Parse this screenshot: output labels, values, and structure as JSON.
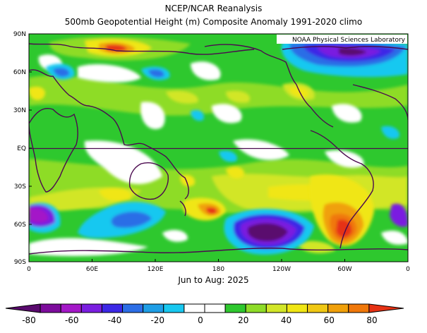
{
  "title": "NCEP/NCAR Reanalysis",
  "subtitle": "500mb Geopotential Height (m) Composite Anomaly 1991-2020 climo",
  "credit": "NOAA Physical Sciences Laboratory",
  "period": "Jun to Aug: 2025",
  "lat_ticks": [
    "90N",
    "60N",
    "30N",
    "EQ",
    "30S",
    "60S",
    "90S"
  ],
  "lon_ticks": [
    "0",
    "60E",
    "120E",
    "180",
    "120W",
    "60W",
    "0"
  ],
  "colorbar": {
    "labels": [
      "-80",
      "-60",
      "-40",
      "-20",
      "0",
      "20",
      "40",
      "60",
      "80"
    ],
    "colors": [
      "#5a0a6e",
      "#7d0c9c",
      "#a418c8",
      "#7a1ee0",
      "#3c28e6",
      "#2c6ee6",
      "#1e9ee6",
      "#18c8f0",
      "#ffffff",
      "#ffffff",
      "#2ec82e",
      "#8edc28",
      "#d2e628",
      "#f0e614",
      "#f0c814",
      "#f0a00a",
      "#f0780a",
      "#e63214"
    ]
  },
  "anomaly_colors": {
    "strong_negative": "#4b0a5c",
    "negative": "#8a1ec8",
    "weak_negative": "#1ea0e6",
    "neutral": "#ffffff",
    "weak_positive": "#2ec82e",
    "positive": "#f0e614",
    "strong_positive": "#e63214"
  }
}
